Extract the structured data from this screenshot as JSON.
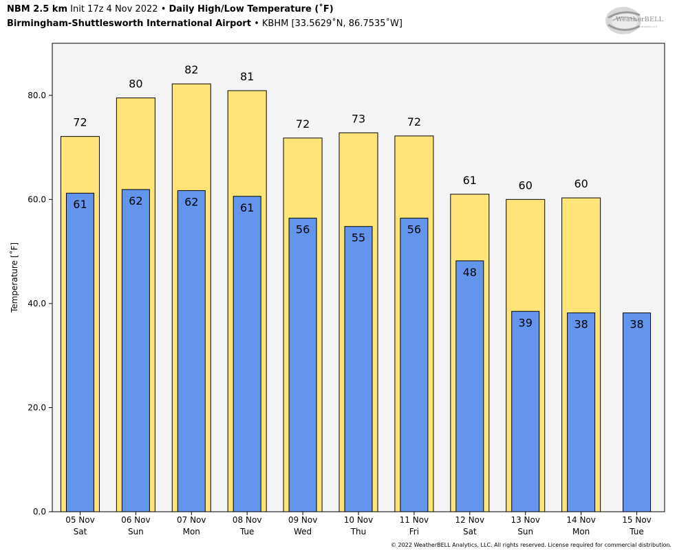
{
  "header": {
    "model": "NBM 2.5 km",
    "init": "Init 17z 4 Nov 2022",
    "bullet": "•",
    "product": "Daily High/Low Temperature (˚F)",
    "station_name": "Birmingham-Shuttlesworth International Airport",
    "station_info": "KBHM [33.5629˚N, 86.7535˚W]"
  },
  "logo": {
    "text": "WeatherBELL",
    "subtext": "Analytics LLC"
  },
  "footer": "© 2022 WeatherBELL Analytics, LLC. All rights reserved. License required for commercial distribution.",
  "colors": {
    "high": "#ffe47a",
    "low": "#6495ed",
    "plot_bg": "#f4f4f4",
    "edge": "#000000"
  },
  "chart_data": {
    "type": "bar",
    "ylabel": "Temperature [˚F]",
    "ylim": [
      0,
      90
    ],
    "yticks": [
      "0.0",
      "20.0",
      "40.0",
      "60.0",
      "80.0"
    ],
    "grid": false,
    "categories": [
      [
        "05 Nov",
        "Sat"
      ],
      [
        "06 Nov",
        "Sun"
      ],
      [
        "07 Nov",
        "Mon"
      ],
      [
        "08 Nov",
        "Tue"
      ],
      [
        "09 Nov",
        "Wed"
      ],
      [
        "10 Nov",
        "Thu"
      ],
      [
        "11 Nov",
        "Fri"
      ],
      [
        "12 Nov",
        "Sat"
      ],
      [
        "13 Nov",
        "Sun"
      ],
      [
        "14 Nov",
        "Mon"
      ],
      [
        "15 Nov",
        "Tue"
      ]
    ],
    "series": [
      {
        "key": "high",
        "values": [
          72.1,
          79.5,
          82.2,
          80.9,
          71.8,
          72.8,
          72.2,
          61.0,
          60.0,
          60.3,
          null
        ],
        "labels": [
          "72",
          "80",
          "82",
          "81",
          "72",
          "73",
          "72",
          "61",
          "60",
          "60",
          ""
        ]
      },
      {
        "key": "low",
        "values": [
          61.2,
          61.9,
          61.7,
          60.6,
          56.4,
          54.8,
          56.4,
          48.2,
          38.5,
          38.2,
          38.2
        ],
        "labels": [
          "61",
          "62",
          "62",
          "61",
          "56",
          "55",
          "56",
          "48",
          "39",
          "38",
          "38"
        ]
      }
    ]
  }
}
